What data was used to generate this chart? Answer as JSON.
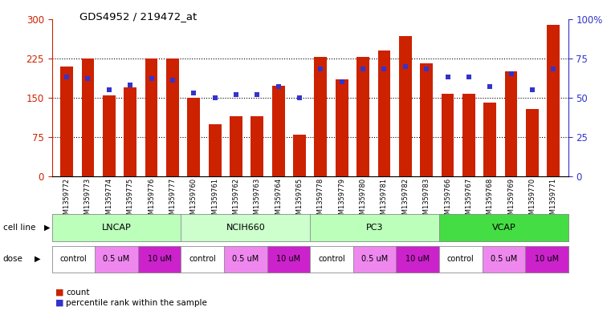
{
  "title": "GDS4952 / 219472_at",
  "samples": [
    "GSM1359772",
    "GSM1359773",
    "GSM1359774",
    "GSM1359775",
    "GSM1359776",
    "GSM1359777",
    "GSM1359760",
    "GSM1359761",
    "GSM1359762",
    "GSM1359763",
    "GSM1359764",
    "GSM1359765",
    "GSM1359778",
    "GSM1359779",
    "GSM1359780",
    "GSM1359781",
    "GSM1359782",
    "GSM1359783",
    "GSM1359766",
    "GSM1359767",
    "GSM1359768",
    "GSM1359769",
    "GSM1359770",
    "GSM1359771"
  ],
  "counts": [
    210,
    225,
    155,
    170,
    225,
    225,
    150,
    100,
    115,
    115,
    172,
    80,
    228,
    185,
    228,
    240,
    268,
    215,
    158,
    158,
    140,
    200,
    128,
    288
  ],
  "percentile_ranks": [
    63,
    62,
    55,
    58,
    62,
    61,
    53,
    50,
    52,
    52,
    57,
    50,
    68,
    60,
    68,
    68,
    70,
    68,
    63,
    63,
    57,
    65,
    55,
    68
  ],
  "cell_lines": [
    {
      "label": "LNCAP",
      "start": 0,
      "end": 6,
      "color": "#bbffbb"
    },
    {
      "label": "NCIH660",
      "start": 6,
      "end": 12,
      "color": "#ccffcc"
    },
    {
      "label": "PC3",
      "start": 12,
      "end": 18,
      "color": "#bbffbb"
    },
    {
      "label": "VCAP",
      "start": 18,
      "end": 24,
      "color": "#44dd44"
    }
  ],
  "dose_segments": [
    {
      "start": 0,
      "end": 2,
      "label": "control",
      "color": "#ffffff"
    },
    {
      "start": 2,
      "end": 4,
      "label": "0.5 uM",
      "color": "#ee88ee"
    },
    {
      "start": 4,
      "end": 6,
      "label": "10 uM",
      "color": "#cc22cc"
    },
    {
      "start": 6,
      "end": 8,
      "label": "control",
      "color": "#ffffff"
    },
    {
      "start": 8,
      "end": 10,
      "label": "0.5 uM",
      "color": "#ee88ee"
    },
    {
      "start": 10,
      "end": 12,
      "label": "10 uM",
      "color": "#cc22cc"
    },
    {
      "start": 12,
      "end": 14,
      "label": "control",
      "color": "#ffffff"
    },
    {
      "start": 14,
      "end": 16,
      "label": "0.5 uM",
      "color": "#ee88ee"
    },
    {
      "start": 16,
      "end": 18,
      "label": "10 uM",
      "color": "#cc22cc"
    },
    {
      "start": 18,
      "end": 20,
      "label": "control",
      "color": "#ffffff"
    },
    {
      "start": 20,
      "end": 22,
      "label": "0.5 uM",
      "color": "#ee88ee"
    },
    {
      "start": 22,
      "end": 24,
      "label": "10 uM",
      "color": "#cc22cc"
    }
  ],
  "bar_color": "#cc2200",
  "blue_color": "#3333cc",
  "ylim_left": [
    0,
    300
  ],
  "ylim_right": [
    0,
    100
  ],
  "yticks_left": [
    0,
    75,
    150,
    225,
    300
  ],
  "yticks_right": [
    0,
    25,
    50,
    75,
    100
  ],
  "bg_color": "#ffffff",
  "tick_color_left": "#cc2200",
  "tick_color_right": "#3333cc",
  "bar_width": 0.6,
  "n_samples": 24
}
